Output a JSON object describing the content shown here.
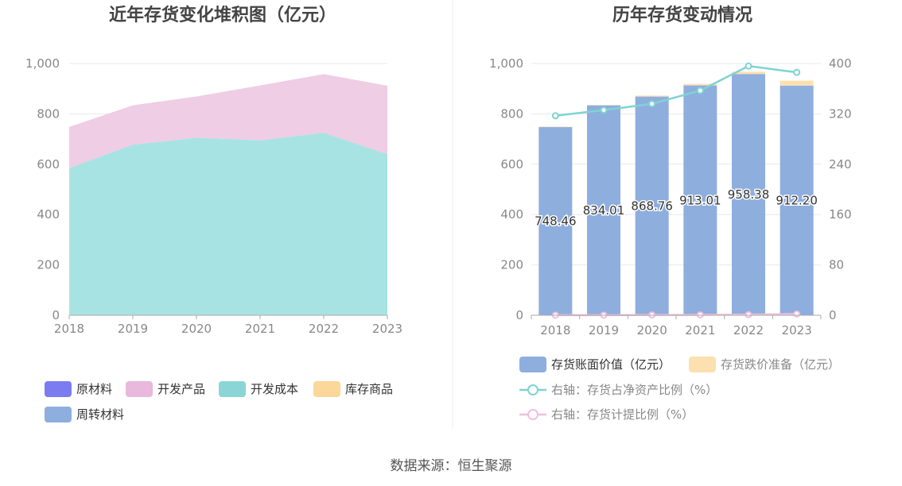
{
  "source_text": "数据来源：恒生聚源",
  "chart_data": [
    {
      "type": "area",
      "title": "近年存货变化堆积图（亿元）",
      "x": [
        "2018",
        "2019",
        "2020",
        "2021",
        "2022",
        "2023"
      ],
      "ylim": [
        0,
        1000
      ],
      "yticks": [
        "0",
        "200",
        "400",
        "600",
        "800",
        "1,000"
      ],
      "grid": true,
      "legend_placement": "bottom",
      "legend": [
        {
          "name": "原材料",
          "color": "#7b7cf0"
        },
        {
          "name": "开发产品",
          "color": "#e8b9dc"
        },
        {
          "name": "开发成本",
          "color": "#8ad6d6"
        },
        {
          "name": "库存商品",
          "color": "#fcd79a"
        },
        {
          "name": "周转材料",
          "color": "#8eaede"
        }
      ],
      "series": [
        {
          "name": "开发成本",
          "color": "#a8e3e3",
          "values": [
            585,
            678,
            705,
            695,
            725,
            640
          ]
        },
        {
          "name": "开发产品",
          "color": "#efcde4",
          "values": [
            163,
            156,
            164,
            218,
            233,
            272
          ]
        }
      ]
    },
    {
      "type": "bar",
      "title": "历年存货变动情况",
      "categories": [
        "2018",
        "2019",
        "2020",
        "2021",
        "2022",
        "2023"
      ],
      "ylim": [
        0,
        1000
      ],
      "yticks": [
        "0",
        "200",
        "400",
        "600",
        "800",
        "1,000"
      ],
      "y2lim": [
        0,
        400
      ],
      "y2ticks": [
        "0",
        "80",
        "160",
        "240",
        "320",
        "400"
      ],
      "grid": true,
      "legend_placement": "bottom",
      "series": [
        {
          "name": "存货账面价值（亿元）",
          "color": "#8eaede",
          "values": [
            748.46,
            834.01,
            868.76,
            913.01,
            958.38,
            912.2
          ],
          "labels": [
            "748.46",
            "834.01",
            "868.76",
            "913.01",
            "958.38",
            "912.20"
          ]
        },
        {
          "name": "存货跌价准备（亿元）",
          "color": "#fde0b0",
          "values": [
            0.5,
            1.5,
            4,
            6,
            9,
            20
          ]
        },
        {
          "name": "右轴：存货占净资产比例（%）",
          "color": "#7fd3d3",
          "axis": "right",
          "values": [
            317,
            326,
            336,
            357,
            396,
            386
          ]
        },
        {
          "name": "右轴：存货计提比例（%）",
          "color": "#efbfdc",
          "axis": "right",
          "values": [
            0.1,
            0.2,
            0.5,
            0.7,
            0.9,
            2.1
          ]
        }
      ]
    }
  ]
}
